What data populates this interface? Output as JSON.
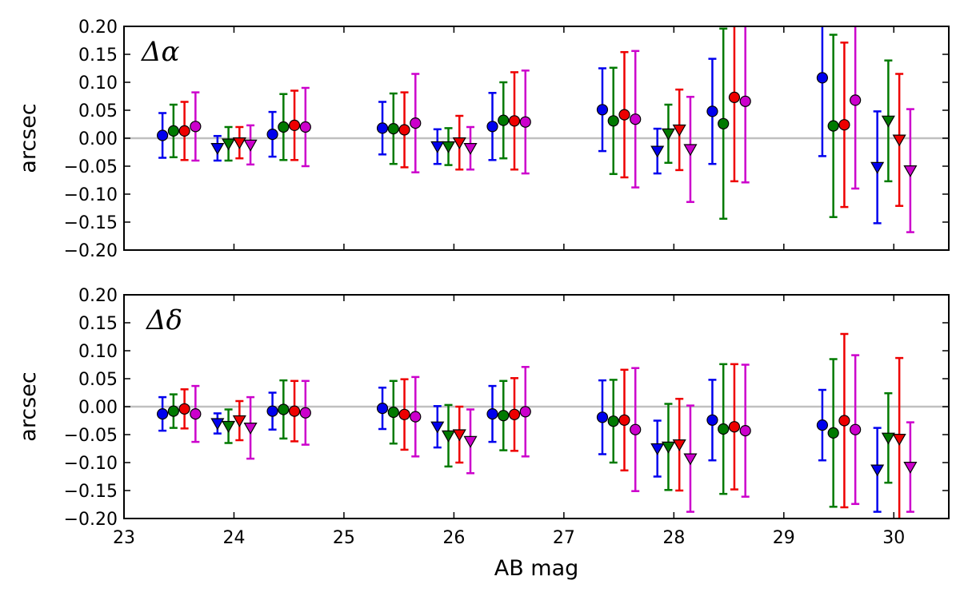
{
  "chart_data": {
    "type": "scatter",
    "x_label": "AB mag",
    "x_range": [
      23,
      30.5
    ],
    "x_ticks": [
      23,
      24,
      25,
      26,
      27,
      28,
      29,
      30
    ],
    "y_ticks": [
      -0.2,
      -0.15,
      -0.1,
      -0.05,
      0.0,
      0.05,
      0.1,
      0.15,
      0.2
    ],
    "colors": {
      "blue": "#0000ee",
      "green": "#007a00",
      "red": "#ee0000",
      "magenta": "#cc00cc",
      "zero_line": "#c0c0c0"
    },
    "series_offsets": [
      -0.15,
      -0.05,
      0.05,
      0.15
    ],
    "panels": [
      {
        "label": "Δα",
        "y_label": "arcsec",
        "y_range": [
          -0.2,
          0.2
        ],
        "groups": [
          {
            "x": 23.5,
            "marker": "circle",
            "points": [
              {
                "color": "blue",
                "y": 0.005,
                "err": 0.04
              },
              {
                "color": "green",
                "y": 0.013,
                "err": 0.047
              },
              {
                "color": "red",
                "y": 0.013,
                "err": 0.052
              },
              {
                "color": "magenta",
                "y": 0.021,
                "err": 0.061
              }
            ]
          },
          {
            "x": 24.0,
            "marker": "triangle",
            "points": [
              {
                "color": "blue",
                "y": -0.018,
                "err": 0.022
              },
              {
                "color": "green",
                "y": -0.01,
                "err": 0.03
              },
              {
                "color": "red",
                "y": -0.008,
                "err": 0.028
              },
              {
                "color": "magenta",
                "y": -0.012,
                "err": 0.035
              }
            ]
          },
          {
            "x": 24.5,
            "marker": "circle",
            "points": [
              {
                "color": "blue",
                "y": 0.007,
                "err": 0.04
              },
              {
                "color": "green",
                "y": 0.02,
                "err": 0.059
              },
              {
                "color": "red",
                "y": 0.023,
                "err": 0.062
              },
              {
                "color": "magenta",
                "y": 0.02,
                "err": 0.07
              }
            ]
          },
          {
            "x": 25.5,
            "marker": "circle",
            "points": [
              {
                "color": "blue",
                "y": 0.018,
                "err": 0.047
              },
              {
                "color": "green",
                "y": 0.017,
                "err": 0.063
              },
              {
                "color": "red",
                "y": 0.015,
                "err": 0.067
              },
              {
                "color": "magenta",
                "y": 0.027,
                "err": 0.088
              }
            ]
          },
          {
            "x": 26.0,
            "marker": "triangle",
            "points": [
              {
                "color": "blue",
                "y": -0.015,
                "err": 0.031
              },
              {
                "color": "green",
                "y": -0.015,
                "err": 0.033
              },
              {
                "color": "red",
                "y": -0.008,
                "err": 0.048
              },
              {
                "color": "magenta",
                "y": -0.018,
                "err": 0.038
              }
            ]
          },
          {
            "x": 26.5,
            "marker": "circle",
            "points": [
              {
                "color": "blue",
                "y": 0.021,
                "err": 0.06
              },
              {
                "color": "green",
                "y": 0.032,
                "err": 0.068
              },
              {
                "color": "red",
                "y": 0.031,
                "err": 0.087
              },
              {
                "color": "magenta",
                "y": 0.029,
                "err": 0.092
              }
            ]
          },
          {
            "x": 27.5,
            "marker": "circle",
            "points": [
              {
                "color": "blue",
                "y": 0.051,
                "err": 0.074
              },
              {
                "color": "green",
                "y": 0.031,
                "err": 0.095
              },
              {
                "color": "red",
                "y": 0.042,
                "err": 0.112
              },
              {
                "color": "magenta",
                "y": 0.034,
                "err": 0.122
              }
            ]
          },
          {
            "x": 28.0,
            "marker": "triangle",
            "points": [
              {
                "color": "blue",
                "y": -0.023,
                "err": 0.04
              },
              {
                "color": "green",
                "y": 0.008,
                "err": 0.052
              },
              {
                "color": "red",
                "y": 0.015,
                "err": 0.072
              },
              {
                "color": "magenta",
                "y": -0.02,
                "err": 0.094
              }
            ]
          },
          {
            "x": 28.5,
            "marker": "circle",
            "points": [
              {
                "color": "blue",
                "y": 0.048,
                "err": 0.094
              },
              {
                "color": "green",
                "y": 0.026,
                "err": 0.17
              },
              {
                "color": "red",
                "y": 0.073,
                "err": 0.15
              },
              {
                "color": "magenta",
                "y": 0.066,
                "err": 0.145
              }
            ]
          },
          {
            "x": 29.5,
            "marker": "circle",
            "points": [
              {
                "color": "blue",
                "y": 0.108,
                "err": 0.14
              },
              {
                "color": "green",
                "y": 0.022,
                "err": 0.163
              },
              {
                "color": "red",
                "y": 0.024,
                "err": 0.147
              },
              {
                "color": "magenta",
                "y": 0.068,
                "err": 0.158
              }
            ]
          },
          {
            "x": 30.0,
            "marker": "triangle",
            "points": [
              {
                "color": "blue",
                "y": -0.052,
                "err": 0.1
              },
              {
                "color": "green",
                "y": 0.031,
                "err": 0.108
              },
              {
                "color": "red",
                "y": -0.003,
                "err": 0.118
              },
              {
                "color": "magenta",
                "y": -0.058,
                "err": 0.11
              }
            ]
          }
        ]
      },
      {
        "label": "Δδ",
        "y_label": "arcsec",
        "y_range": [
          -0.2,
          0.2
        ],
        "groups": [
          {
            "x": 23.5,
            "marker": "circle",
            "points": [
              {
                "color": "blue",
                "y": -0.013,
                "err": 0.03
              },
              {
                "color": "green",
                "y": -0.008,
                "err": 0.03
              },
              {
                "color": "red",
                "y": -0.004,
                "err": 0.035
              },
              {
                "color": "magenta",
                "y": -0.013,
                "err": 0.05
              }
            ]
          },
          {
            "x": 24.0,
            "marker": "triangle",
            "points": [
              {
                "color": "blue",
                "y": -0.03,
                "err": 0.018
              },
              {
                "color": "green",
                "y": -0.035,
                "err": 0.03
              },
              {
                "color": "red",
                "y": -0.025,
                "err": 0.035
              },
              {
                "color": "magenta",
                "y": -0.038,
                "err": 0.055
              }
            ]
          },
          {
            "x": 24.5,
            "marker": "circle",
            "points": [
              {
                "color": "blue",
                "y": -0.008,
                "err": 0.033
              },
              {
                "color": "green",
                "y": -0.005,
                "err": 0.052
              },
              {
                "color": "red",
                "y": -0.008,
                "err": 0.054
              },
              {
                "color": "magenta",
                "y": -0.011,
                "err": 0.057
              }
            ]
          },
          {
            "x": 25.5,
            "marker": "circle",
            "points": [
              {
                "color": "blue",
                "y": -0.003,
                "err": 0.037
              },
              {
                "color": "green",
                "y": -0.01,
                "err": 0.056
              },
              {
                "color": "red",
                "y": -0.014,
                "err": 0.063
              },
              {
                "color": "magenta",
                "y": -0.018,
                "err": 0.071
              }
            ]
          },
          {
            "x": 26.0,
            "marker": "triangle",
            "points": [
              {
                "color": "blue",
                "y": -0.036,
                "err": 0.037
              },
              {
                "color": "green",
                "y": -0.052,
                "err": 0.055
              },
              {
                "color": "red",
                "y": -0.05,
                "err": 0.05
              },
              {
                "color": "magenta",
                "y": -0.062,
                "err": 0.057
              }
            ]
          },
          {
            "x": 26.5,
            "marker": "circle",
            "points": [
              {
                "color": "blue",
                "y": -0.013,
                "err": 0.05
              },
              {
                "color": "green",
                "y": -0.016,
                "err": 0.062
              },
              {
                "color": "red",
                "y": -0.014,
                "err": 0.065
              },
              {
                "color": "magenta",
                "y": -0.009,
                "err": 0.08
              }
            ]
          },
          {
            "x": 27.5,
            "marker": "circle",
            "points": [
              {
                "color": "blue",
                "y": -0.019,
                "err": 0.066
              },
              {
                "color": "green",
                "y": -0.026,
                "err": 0.074
              },
              {
                "color": "red",
                "y": -0.024,
                "err": 0.09
              },
              {
                "color": "magenta",
                "y": -0.041,
                "err": 0.11
              }
            ]
          },
          {
            "x": 28.0,
            "marker": "triangle",
            "points": [
              {
                "color": "blue",
                "y": -0.075,
                "err": 0.05
              },
              {
                "color": "green",
                "y": -0.072,
                "err": 0.077
              },
              {
                "color": "red",
                "y": -0.068,
                "err": 0.082
              },
              {
                "color": "magenta",
                "y": -0.093,
                "err": 0.095
              }
            ]
          },
          {
            "x": 28.5,
            "marker": "circle",
            "points": [
              {
                "color": "blue",
                "y": -0.024,
                "err": 0.072
              },
              {
                "color": "green",
                "y": -0.04,
                "err": 0.116
              },
              {
                "color": "red",
                "y": -0.036,
                "err": 0.112
              },
              {
                "color": "magenta",
                "y": -0.043,
                "err": 0.118
              }
            ]
          },
          {
            "x": 29.5,
            "marker": "circle",
            "points": [
              {
                "color": "blue",
                "y": -0.033,
                "err": 0.063
              },
              {
                "color": "green",
                "y": -0.047,
                "err": 0.132
              },
              {
                "color": "red",
                "y": -0.025,
                "err": 0.155
              },
              {
                "color": "magenta",
                "y": -0.041,
                "err": 0.133
              }
            ]
          },
          {
            "x": 30.0,
            "marker": "triangle",
            "points": [
              {
                "color": "blue",
                "y": -0.113,
                "err": 0.075
              },
              {
                "color": "green",
                "y": -0.056,
                "err": 0.08
              },
              {
                "color": "red",
                "y": -0.058,
                "err": 0.145
              },
              {
                "color": "magenta",
                "y": -0.108,
                "err": 0.08
              }
            ]
          }
        ]
      }
    ]
  }
}
